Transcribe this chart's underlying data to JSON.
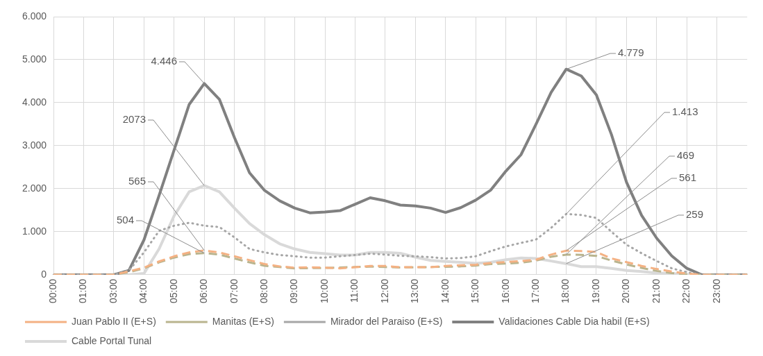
{
  "chart_data": {
    "type": "line",
    "categories": [
      "00:00",
      null,
      "01:00",
      null,
      "03:00",
      null,
      "04:00",
      null,
      "05:00",
      null,
      "06:00",
      null,
      "07:00",
      null,
      "08:00",
      null,
      "09:00",
      null,
      "10:00",
      null,
      "11:00",
      null,
      "12:00",
      null,
      "13:00",
      null,
      "14:00",
      null,
      "15:00",
      null,
      "16:00",
      null,
      "17:00",
      null,
      "18:00",
      null,
      "19:00",
      null,
      "20:00",
      null,
      "21:00",
      null,
      "22:00",
      null,
      "23:00",
      null,
      null
    ],
    "series": [
      {
        "name": "Juan Pablo II (E+S)",
        "color": "#f4b183",
        "line_style": "dashed",
        "values": [
          0,
          0,
          0,
          0,
          0,
          80,
          165,
          310,
          430,
          520,
          565,
          520,
          430,
          340,
          250,
          195,
          165,
          175,
          165,
          150,
          175,
          205,
          205,
          175,
          175,
          175,
          205,
          220,
          235,
          275,
          295,
          320,
          350,
          470,
          561,
          550,
          530,
          380,
          295,
          205,
          135,
          75,
          30,
          0,
          0,
          0,
          0
        ]
      },
      {
        "name": "Manitas (E+S)",
        "color": "#b9b48e",
        "line_style": "dashed",
        "values": [
          0,
          0,
          0,
          0,
          0,
          60,
          150,
          290,
          400,
          480,
          504,
          470,
          380,
          290,
          210,
          180,
          150,
          155,
          160,
          170,
          180,
          190,
          180,
          170,
          175,
          180,
          185,
          195,
          215,
          250,
          260,
          280,
          330,
          420,
          469,
          465,
          440,
          330,
          240,
          160,
          90,
          40,
          10,
          0,
          0,
          0,
          0
        ]
      },
      {
        "name": "Mirador del Paraiso (E+S)",
        "color": "#a6a6a6",
        "line_style": "dotted",
        "values": [
          0,
          0,
          0,
          0,
          0,
          100,
          520,
          1020,
          1140,
          1210,
          1140,
          1110,
          870,
          600,
          520,
          460,
          430,
          400,
          400,
          430,
          460,
          490,
          470,
          440,
          430,
          410,
          380,
          390,
          430,
          550,
          660,
          740,
          820,
          1090,
          1413,
          1390,
          1320,
          1000,
          700,
          500,
          320,
          150,
          60,
          0,
          0,
          0,
          0
        ]
      },
      {
        "name": "Validaciones Cable Dia habil (E+S)",
        "color": "#808080",
        "line_style": "solid",
        "values": [
          0,
          0,
          0,
          0,
          0,
          100,
          810,
          1840,
          2900,
          3960,
          4446,
          4080,
          3190,
          2370,
          1960,
          1720,
          1550,
          1440,
          1460,
          1490,
          1640,
          1790,
          1720,
          1620,
          1600,
          1550,
          1450,
          1560,
          1735,
          1970,
          2410,
          2790,
          3500,
          4240,
          4779,
          4620,
          4180,
          3260,
          2150,
          1380,
          850,
          440,
          150,
          0,
          0,
          0,
          0
        ]
      },
      {
        "name": "Cable Portal Tunal",
        "color": "#d9d9d9",
        "line_style": "solid",
        "values": [
          0,
          0,
          0,
          0,
          0,
          0,
          30,
          600,
          1370,
          1930,
          2073,
          1930,
          1550,
          1190,
          930,
          720,
          600,
          520,
          490,
          460,
          460,
          520,
          520,
          500,
          410,
          335,
          310,
          290,
          265,
          290,
          350,
          390,
          380,
          320,
          259,
          190,
          190,
          150,
          100,
          75,
          40,
          30,
          0,
          0,
          0,
          0,
          0
        ]
      }
    ],
    "ylim": [
      0,
      6000
    ],
    "yticks": [
      0,
      {
        "value": 1000,
        "label": "1.000"
      },
      {
        "value": 2000,
        "label": "2.000"
      },
      {
        "value": 3000,
        "label": "3.000"
      },
      {
        "value": 4000,
        "label": "4.000"
      },
      {
        "value": 5000,
        "label": "5.000"
      },
      {
        "value": 6000,
        "label": "6.000"
      }
    ],
    "annotations": [
      {
        "text": "4.446",
        "x": "06:00",
        "y": 4446
      },
      {
        "text": "2073",
        "x": "06:00",
        "y": 2073
      },
      {
        "text": "565",
        "x": "06:00",
        "y": 565
      },
      {
        "text": "504",
        "x": "06:00",
        "y": 504
      },
      {
        "text": "4.779",
        "x": "18:00",
        "y": 4779
      },
      {
        "text": "1.413",
        "x": "18:00",
        "y": 1413
      },
      {
        "text": "469",
        "x": "18:00",
        "y": 469
      },
      {
        "text": "561",
        "x": "18:00",
        "y": 561
      },
      {
        "text": "259",
        "x": "18:00",
        "y": 259
      }
    ],
    "grid": true,
    "legend": "bottom",
    "marker": "none"
  }
}
